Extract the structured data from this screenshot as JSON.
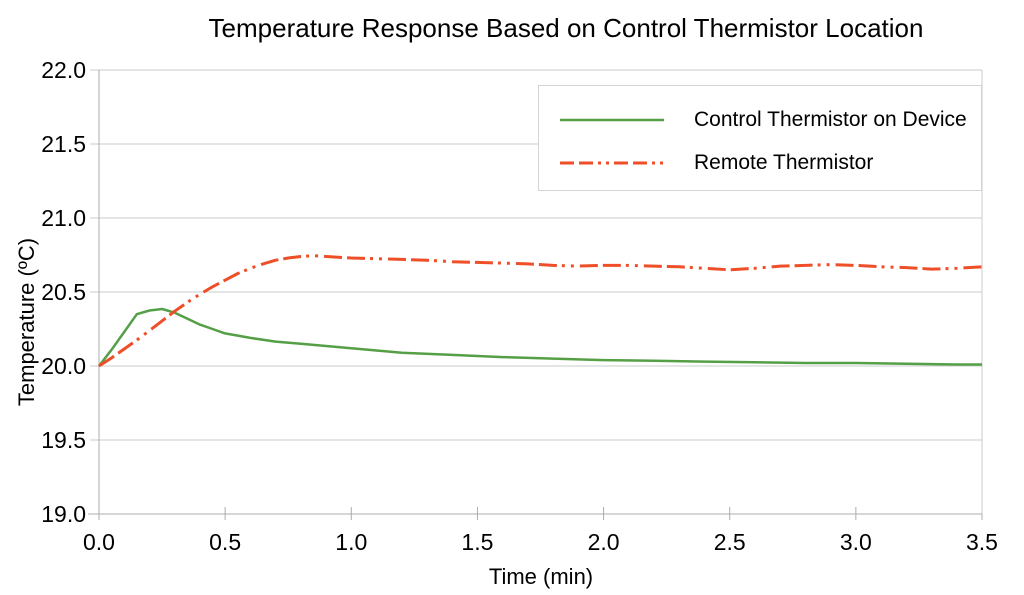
{
  "chart_data": {
    "type": "line",
    "title": "Temperature Response Based on Control Thermistor Location",
    "xlabel": "Time (min)",
    "ylabel": "Temperature (ºC)",
    "xlim": [
      0.0,
      3.5
    ],
    "ylim": [
      19.0,
      22.0
    ],
    "x_ticks": [
      0.0,
      0.5,
      1.0,
      1.5,
      2.0,
      2.5,
      3.0,
      3.5
    ],
    "x_tick_labels": [
      "0.0",
      "0.5",
      "1.0",
      "1.5",
      "2.0",
      "2.5",
      "3.0",
      "3.5"
    ],
    "y_ticks": [
      22.0,
      21.5,
      21.0,
      20.5,
      20.0,
      19.5,
      19.0
    ],
    "y_tick_labels": [
      "22.0",
      "21.5",
      "21.0",
      "20.5",
      "20.0",
      "19.5",
      "19.0"
    ],
    "grid": "horizontal-only",
    "legend_position": "inside-top-right",
    "colors": {
      "gridline": "#c9cccd",
      "axis": "#a8adaf",
      "text": "#000000"
    },
    "series": [
      {
        "name": "Control Thermistor on Device",
        "color": "#55a046",
        "style": "solid",
        "x": [
          0.0,
          0.05,
          0.1,
          0.15,
          0.2,
          0.25,
          0.3,
          0.35,
          0.4,
          0.45,
          0.5,
          0.6,
          0.7,
          0.8,
          0.9,
          1.0,
          1.1,
          1.2,
          1.4,
          1.6,
          1.8,
          2.0,
          2.2,
          2.4,
          2.6,
          2.8,
          3.0,
          3.2,
          3.4,
          3.5
        ],
        "values": [
          20.0,
          20.11,
          20.23,
          20.35,
          20.375,
          20.385,
          20.36,
          20.32,
          20.28,
          20.25,
          20.22,
          20.19,
          20.165,
          20.15,
          20.135,
          20.12,
          20.105,
          20.09,
          20.075,
          20.06,
          20.05,
          20.04,
          20.035,
          20.03,
          20.025,
          20.02,
          20.02,
          20.015,
          20.01,
          20.01
        ]
      },
      {
        "name": "Remote Thermistor",
        "color": "#ee4e28",
        "style": "dash-dash-dot-dot",
        "x": [
          0.0,
          0.05,
          0.1,
          0.15,
          0.2,
          0.25,
          0.3,
          0.35,
          0.4,
          0.45,
          0.5,
          0.55,
          0.6,
          0.65,
          0.7,
          0.75,
          0.8,
          0.85,
          0.9,
          1.0,
          1.1,
          1.2,
          1.3,
          1.4,
          1.5,
          1.6,
          1.7,
          1.8,
          1.9,
          2.0,
          2.1,
          2.2,
          2.3,
          2.4,
          2.5,
          2.6,
          2.7,
          2.8,
          2.9,
          3.0,
          3.1,
          3.2,
          3.3,
          3.4,
          3.5
        ],
        "values": [
          20.0,
          20.055,
          20.115,
          20.175,
          20.24,
          20.305,
          20.37,
          20.43,
          20.485,
          20.535,
          20.58,
          20.625,
          20.66,
          20.69,
          20.715,
          20.73,
          20.74,
          20.745,
          20.74,
          20.73,
          20.725,
          20.72,
          20.715,
          20.705,
          20.7,
          20.695,
          20.69,
          20.68,
          20.675,
          20.68,
          20.68,
          20.675,
          20.67,
          20.66,
          20.65,
          20.66,
          20.675,
          20.68,
          20.685,
          20.68,
          20.67,
          20.665,
          20.655,
          20.66,
          20.67
        ]
      }
    ]
  }
}
